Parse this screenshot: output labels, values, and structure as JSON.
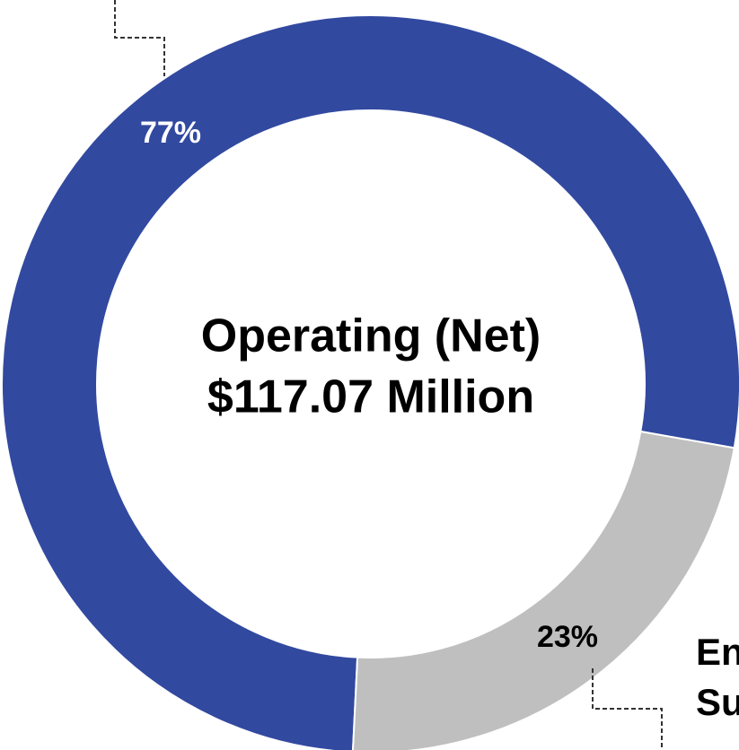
{
  "chart_data": {
    "type": "donut",
    "values": [
      77,
      23
    ],
    "value_labels": [
      "77%",
      "23%"
    ],
    "colors": [
      "#3249a0",
      "#bfbfbf"
    ],
    "center_text": [
      "Operating (Net)",
      "$117.07 Million"
    ],
    "annotations": [
      "En",
      "Su"
    ]
  }
}
